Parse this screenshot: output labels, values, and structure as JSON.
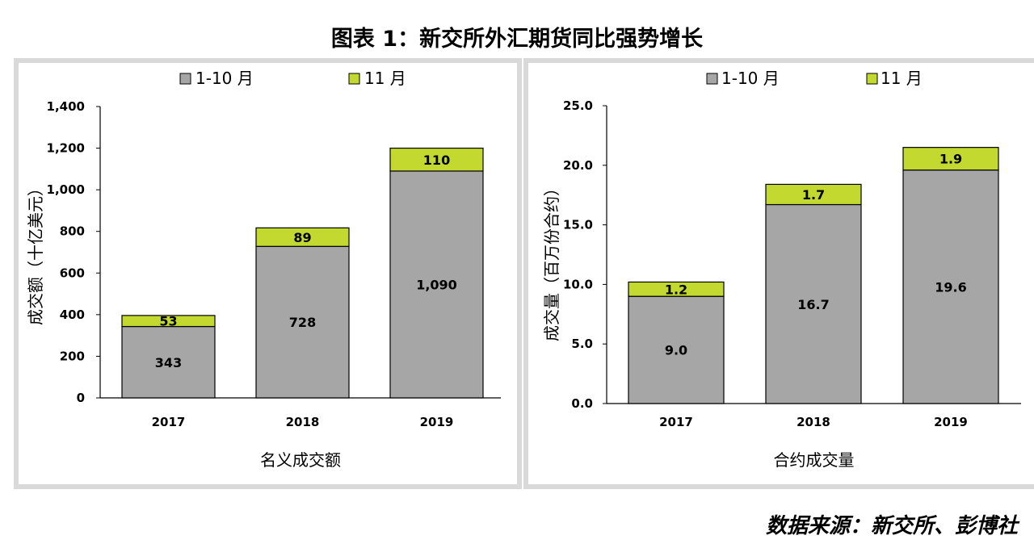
{
  "title": "图表 1：新交所外汇期货同比强势增长",
  "source": "数据来源：新交所、彭博社",
  "colors": {
    "jan_oct": "#a6a6a6",
    "nov": "#c3d930",
    "frame": "#d9d9d9",
    "axis": "#000000"
  },
  "chart_data": [
    {
      "type": "bar",
      "stacked": true,
      "categories": [
        "2017",
        "2018",
        "2019"
      ],
      "series": [
        {
          "name": "1-10 月",
          "values": [
            343,
            728,
            1090
          ],
          "labels": [
            "343",
            "728",
            "1,090"
          ],
          "color": "#a6a6a6"
        },
        {
          "name": "11 月",
          "values": [
            53,
            89,
            110
          ],
          "labels": [
            "53",
            "89",
            "110"
          ],
          "color": "#c3d930"
        }
      ],
      "ylim": [
        0,
        1400
      ],
      "yticks": [
        "0",
        "200",
        "400",
        "600",
        "800",
        "1,000",
        "1,200",
        "1,400"
      ],
      "xlabel": "名义成交额",
      "ylabel": "成交额（十亿美元）",
      "legend": "top",
      "grid": false
    },
    {
      "type": "bar",
      "stacked": true,
      "categories": [
        "2017",
        "2018",
        "2019"
      ],
      "series": [
        {
          "name": "1-10 月",
          "values": [
            9.0,
            16.7,
            19.6
          ],
          "labels": [
            "9.0",
            "16.7",
            "19.6"
          ],
          "color": "#a6a6a6"
        },
        {
          "name": "11 月",
          "values": [
            1.2,
            1.7,
            1.9
          ],
          "labels": [
            "1.2",
            "1.7",
            "1.9"
          ],
          "color": "#c3d930"
        }
      ],
      "ylim": [
        0,
        25
      ],
      "yticks": [
        "0.0",
        "5.0",
        "10.0",
        "15.0",
        "20.0",
        "25.0"
      ],
      "xlabel": "合约成交量",
      "ylabel": "成交量（百万份合约）",
      "legend": "top",
      "grid": false
    }
  ]
}
